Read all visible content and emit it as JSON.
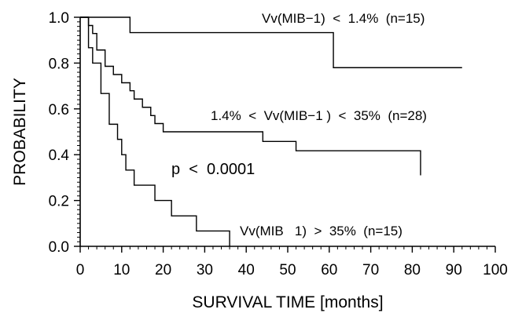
{
  "chart_data": {
    "type": "line",
    "subtype": "kaplan-meier step curves",
    "xlabel": "SURVIVAL TIME [months]",
    "ylabel": "PROBABILITY",
    "xlim": [
      0,
      100
    ],
    "ylim": [
      0,
      1.0
    ],
    "xticks": [
      0,
      10,
      20,
      30,
      40,
      50,
      60,
      70,
      80,
      90,
      100
    ],
    "xtick_labels": [
      "0",
      "10",
      "20",
      "30",
      "40",
      "50",
      "60",
      "70",
      "80",
      "90",
      "100"
    ],
    "yticks": [
      0.0,
      0.2,
      0.4,
      0.6,
      0.8,
      1.0
    ],
    "ytick_labels": [
      "0.0",
      "0.2",
      "0.4",
      "0.6",
      "0.8",
      "1.0"
    ],
    "grid": false,
    "legend": "none",
    "series": [
      {
        "name": "Vv(MIB−1) < 1.4% (n=15)",
        "color": "#000000",
        "x": [
          0,
          12,
          61,
          92
        ],
        "y": [
          1.0,
          0.933,
          0.78,
          0.78
        ]
      },
      {
        "name": "1.4% < Vv(MIB−1) < 35% (n=28)",
        "color": "#000000",
        "x": [
          0,
          2,
          3,
          4,
          6,
          8,
          10,
          12,
          13,
          15,
          17,
          18,
          20,
          28,
          44,
          52,
          82
        ],
        "y": [
          1.0,
          0.964,
          0.929,
          0.857,
          0.786,
          0.75,
          0.714,
          0.679,
          0.643,
          0.607,
          0.571,
          0.536,
          0.5,
          0.5,
          0.458,
          0.417,
          0.31
        ]
      },
      {
        "name": "Vv(MIB 1) > 35% (n=15)",
        "color": "#000000",
        "x": [
          0,
          2,
          3,
          5,
          7,
          9,
          10,
          11,
          13,
          18,
          22,
          28,
          36
        ],
        "y": [
          1.0,
          0.867,
          0.8,
          0.667,
          0.533,
          0.467,
          0.4,
          0.333,
          0.267,
          0.2,
          0.133,
          0.067,
          0.0
        ]
      }
    ],
    "annotations": {
      "group_low": "Vv(MIB−1)  <  1.4%  (n=15)",
      "group_mid": "1.4%  <  Vv(MIB−1 )  <  35%  (n=28)",
      "group_high": "Vv(MIB   1)  >  35%  (n=15)",
      "p_value": "p  <  0.0001"
    }
  }
}
